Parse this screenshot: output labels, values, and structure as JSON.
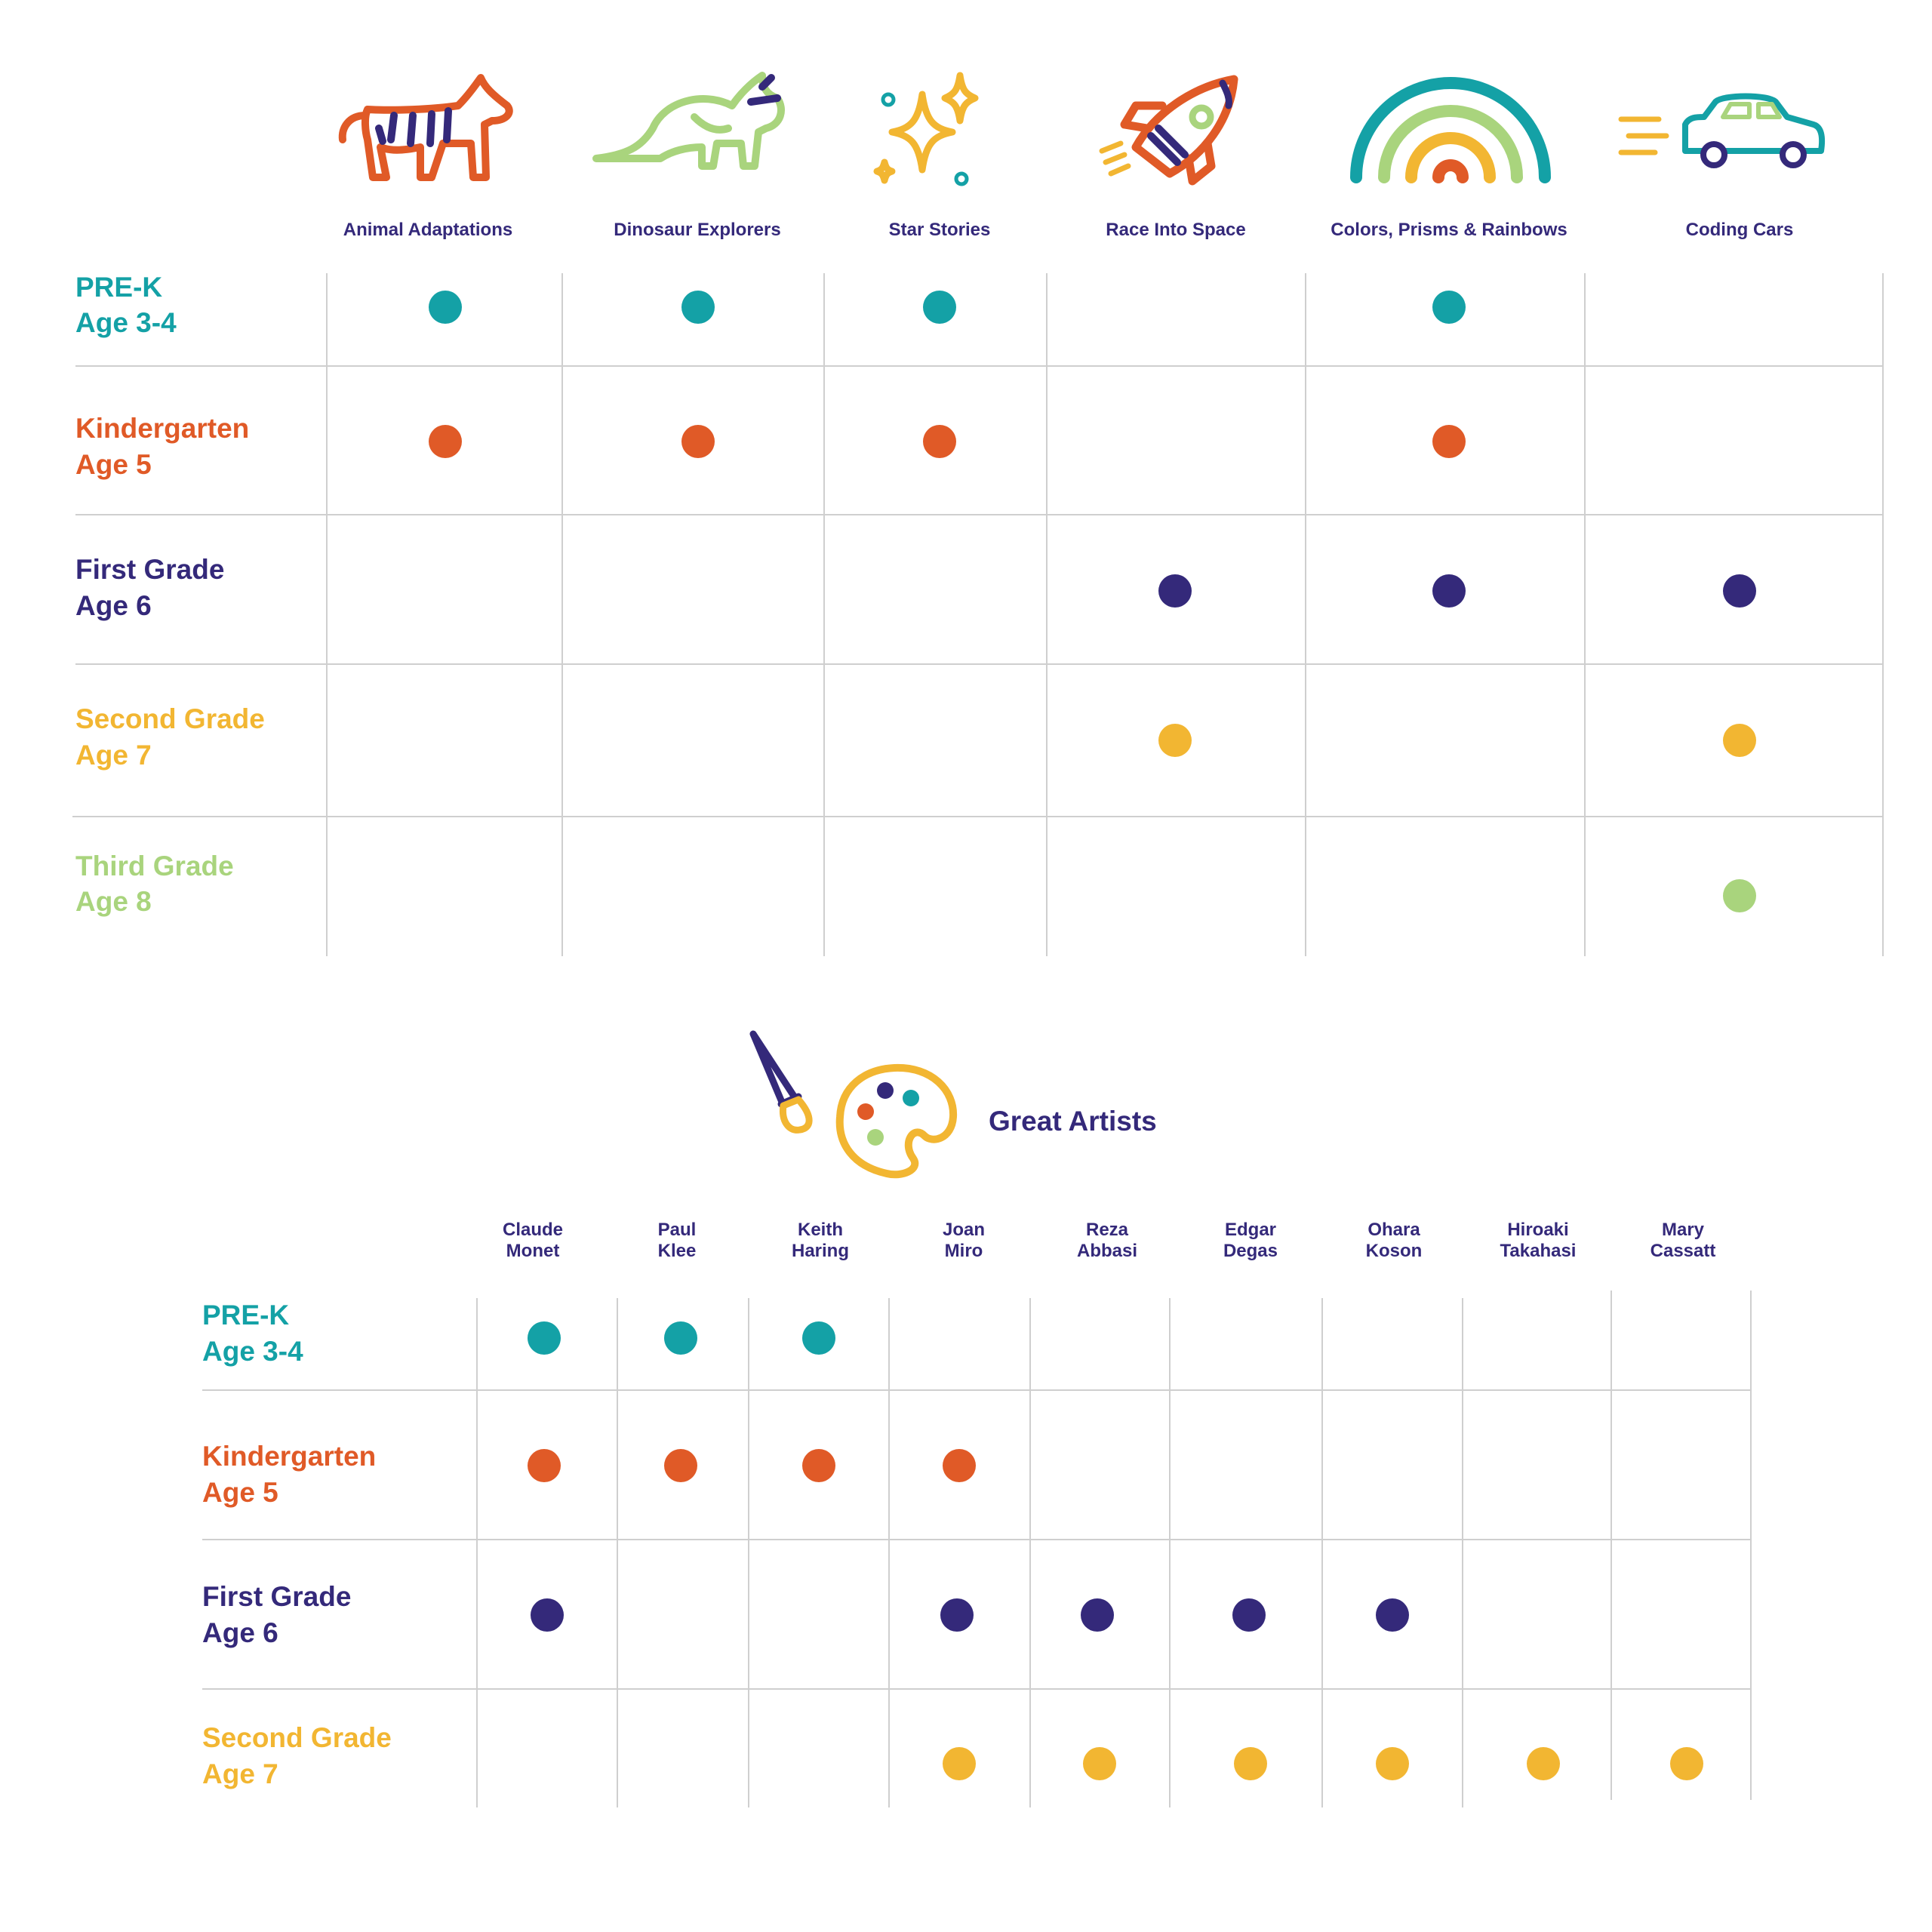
{
  "colors": {
    "teal": "#14a1a6",
    "orange": "#e05a27",
    "navy": "#34297a",
    "yellow": "#f2b632",
    "green": "#a9d47d"
  },
  "chart_data": [
    {
      "type": "table",
      "title": "",
      "categories": [
        "Animal Adaptations",
        "Dinosaur Explorers",
        "Star Stories",
        "Race Into Space",
        "Colors, Prisms & Rainbows",
        "Coding Cars"
      ],
      "icons": [
        "tiger-icon",
        "dinosaur-icon",
        "stars-icon",
        "rocket-icon",
        "rainbow-icon",
        "car-icon"
      ],
      "series": [
        {
          "name": "PRE-K",
          "age": "Age 3-4",
          "color": "#14a1a6",
          "values": [
            1,
            1,
            1,
            0,
            1,
            0
          ]
        },
        {
          "name": "Kindergarten",
          "age": "Age 5",
          "color": "#e05a27",
          "values": [
            1,
            1,
            1,
            0,
            1,
            0
          ]
        },
        {
          "name": "First Grade",
          "age": "Age 6",
          "color": "#34297a",
          "values": [
            0,
            0,
            0,
            1,
            1,
            1
          ]
        },
        {
          "name": "Second Grade",
          "age": "Age 7",
          "color": "#f2b632",
          "values": [
            0,
            0,
            0,
            1,
            0,
            1
          ]
        },
        {
          "name": "Third Grade",
          "age": "Age 8",
          "color": "#a9d47d",
          "values": [
            0,
            0,
            0,
            0,
            0,
            1
          ]
        }
      ]
    },
    {
      "type": "table",
      "title": "Great Artists",
      "icons": [
        "paintbrush-icon",
        "palette-icon"
      ],
      "categories": [
        [
          "Claude",
          "Monet"
        ],
        [
          "Paul",
          "Klee"
        ],
        [
          "Keith",
          "Haring"
        ],
        [
          "Joan",
          "Miro"
        ],
        [
          "Reza",
          "Abbasi"
        ],
        [
          "Edgar",
          "Degas"
        ],
        [
          "Ohara",
          "Koson"
        ],
        [
          "Hiroaki",
          "Takahasi"
        ],
        [
          "Mary",
          "Cassatt"
        ]
      ],
      "series": [
        {
          "name": "PRE-K",
          "age": "Age 3-4",
          "color": "#14a1a6",
          "values": [
            1,
            1,
            1,
            0,
            0,
            0,
            0,
            0,
            0
          ]
        },
        {
          "name": "Kindergarten",
          "age": "Age 5",
          "color": "#e05a27",
          "values": [
            1,
            1,
            1,
            1,
            0,
            0,
            0,
            0,
            0
          ]
        },
        {
          "name": "First Grade",
          "age": "Age 6",
          "color": "#34297a",
          "values": [
            1,
            0,
            0,
            1,
            1,
            1,
            1,
            0,
            0
          ]
        },
        {
          "name": "Second Grade",
          "age": "Age 7",
          "color": "#f2b632",
          "values": [
            0,
            0,
            0,
            1,
            1,
            1,
            1,
            1,
            1
          ]
        }
      ]
    }
  ]
}
